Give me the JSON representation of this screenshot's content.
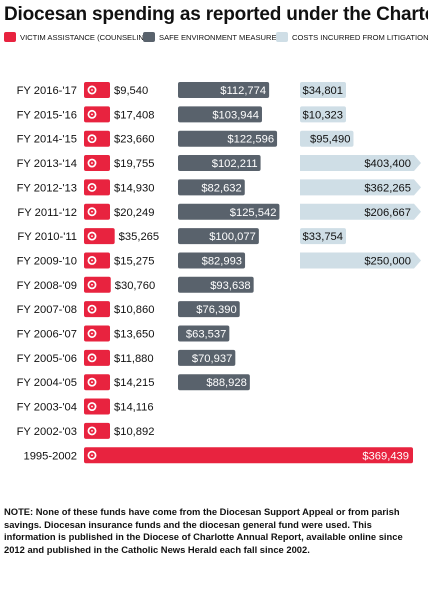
{
  "chart_data": {
    "type": "bar",
    "title": "Diocesan spending as reported under the Charter",
    "categories": [
      "FY 2016-'17",
      "FY 2015-'16",
      "FY 2014-'15",
      "FY 2013-'14",
      "FY 2012-'13",
      "FY 2011-'12",
      "FY 2010-'11",
      "FY 2009-'10",
      "FY 2008-'09",
      "FY 2007-'08",
      "FY 2006-'07",
      "FY 2005-'06",
      "FY 2004-'05",
      "FY 2003-'04",
      "FY 2002-'03",
      "1995-2002"
    ],
    "series": [
      {
        "name": "VICTIM ASSISTANCE (COUNSELING)",
        "color": "#e8233f",
        "values": [
          9540,
          17408,
          23660,
          19755,
          14930,
          20249,
          35265,
          15275,
          30760,
          10860,
          13650,
          11880,
          14215,
          14116,
          10892,
          369439
        ],
        "labels": [
          "$9,540",
          "$17,408",
          "$23,660",
          "$19,755",
          "$14,930",
          "$20,249",
          "$35,265",
          "$15,275",
          "$30,760",
          "$10,860",
          "$13,650",
          "$11,880",
          "$14,215",
          "$14,116",
          "$10,892",
          "$369,439"
        ]
      },
      {
        "name": "SAFE ENVIRONMENT MEASURES",
        "color": "#59626c",
        "values": [
          112774,
          103944,
          122596,
          102211,
          82632,
          125542,
          100077,
          82993,
          93638,
          76390,
          63537,
          70937,
          88928,
          null,
          null,
          null
        ],
        "labels": [
          "$112,774",
          "$103,944",
          "$122,596",
          "$102,211",
          "$82,632",
          "$125,542",
          "$100,077",
          "$82,993",
          "$93,638",
          "$76,390",
          "$63,537",
          "$70,937",
          "$88,928",
          null,
          null,
          null
        ]
      },
      {
        "name": "COSTS INCURRED FROM LITIGATION",
        "color": "#cfdee6",
        "values": [
          34801,
          10323,
          95490,
          403400,
          362265,
          206667,
          33754,
          250000,
          null,
          null,
          null,
          null,
          null,
          null,
          null,
          null
        ],
        "labels": [
          "$34,801",
          "$10,323",
          "$95,490",
          "$403,400",
          "$362,265",
          "$206,667",
          "$33,754",
          "$250,000",
          null,
          null,
          null,
          null,
          null,
          null,
          null,
          null
        ]
      }
    ]
  },
  "note": "NOTE: None of these funds have come from the Diocesan Support Appeal or from parish savings. Diocesan insurance funds and the diocesan general fund were used. This information is published in the Diocese of Charlotte Annual Report, available online since 2012 and published in the Catholic News Herald each fall since 2002."
}
